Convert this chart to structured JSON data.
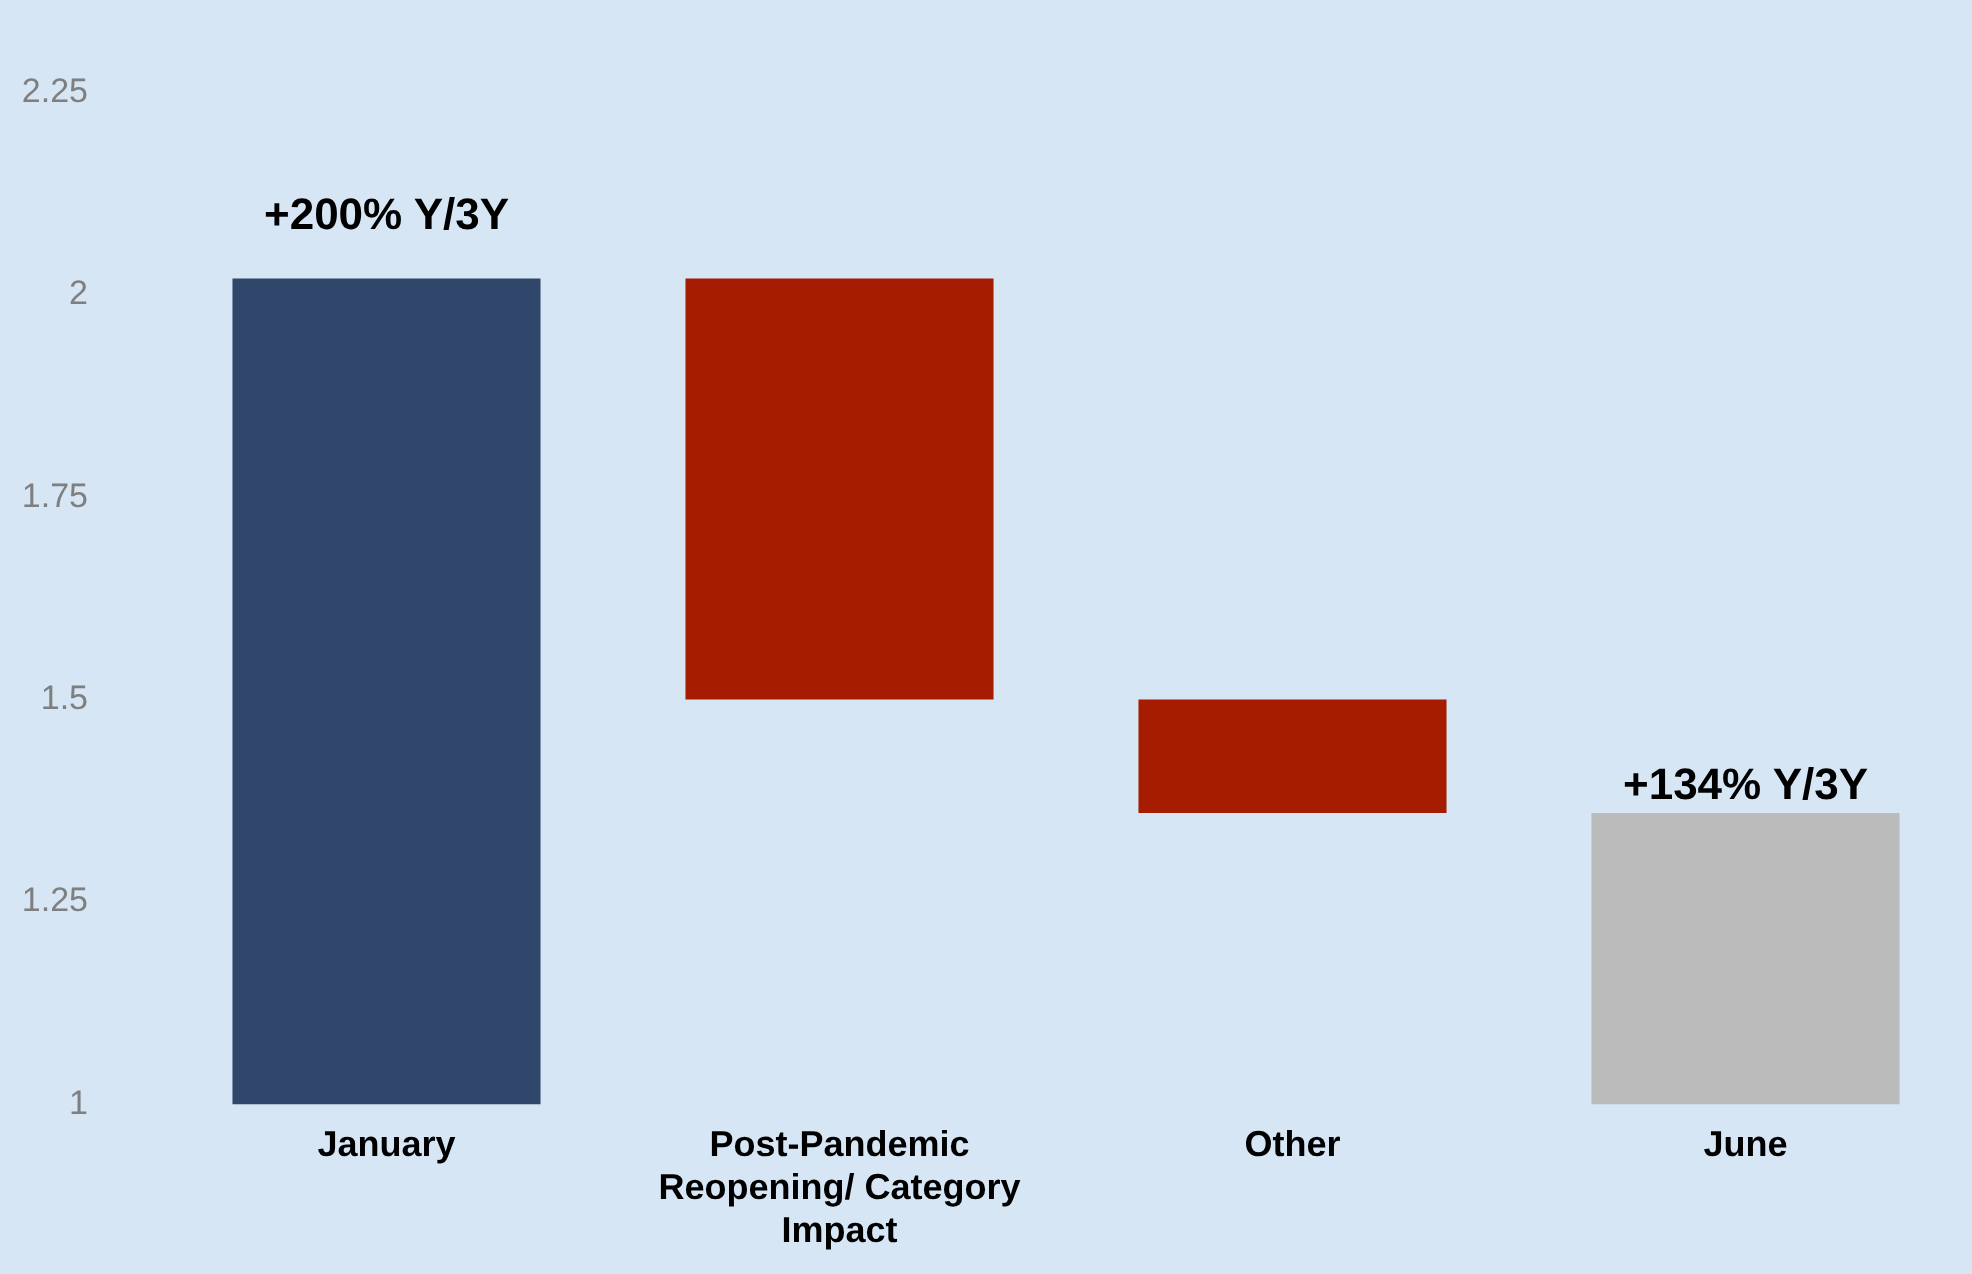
{
  "chart_data": {
    "type": "bar",
    "categories": [
      "January",
      "Post-Pandemic Reopening/ Category Impact",
      "Other",
      "June"
    ],
    "values": [
      1.02,
      -0.52,
      -0.14,
      0.36
    ],
    "base": [
      1,
      2.02,
      1.5,
      1
    ],
    "colors": [
      "#31466b",
      "#a51c00",
      "#a51c00",
      "#bbbbbb"
    ],
    "ylim": [
      1,
      2.25
    ],
    "yticks": [
      1,
      1.25,
      1.5,
      1.75,
      2,
      2.25
    ],
    "grid": false,
    "legend": false,
    "annotations": [
      {
        "text": "+200% Y/3Y",
        "x": "January",
        "y": 2.02
      },
      {
        "text": "+134% Y/3Y",
        "x": "June",
        "y": 1.36
      }
    ]
  }
}
